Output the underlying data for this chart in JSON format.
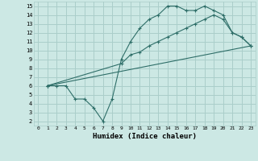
{
  "xlabel": "Humidex (Indice chaleur)",
  "bg_color": "#cce8e4",
  "grid_color": "#aaceca",
  "line_color": "#2e6e68",
  "xlim": [
    -0.5,
    23.5
  ],
  "ylim": [
    1.5,
    15.5
  ],
  "xticks": [
    0,
    1,
    2,
    3,
    4,
    5,
    6,
    7,
    8,
    9,
    10,
    11,
    12,
    13,
    14,
    15,
    16,
    17,
    18,
    19,
    20,
    21,
    22,
    23
  ],
  "yticks": [
    2,
    3,
    4,
    5,
    6,
    7,
    8,
    9,
    10,
    11,
    12,
    13,
    14,
    15
  ],
  "line1_x": [
    1,
    2,
    3,
    4,
    5,
    6,
    7,
    8,
    9,
    10,
    11,
    12,
    13,
    14,
    15,
    16,
    17,
    18,
    19,
    20,
    21,
    22,
    23
  ],
  "line1_y": [
    6,
    6,
    6,
    4.5,
    4.5,
    3.5,
    2,
    4.5,
    9,
    11,
    12.5,
    13.5,
    14,
    15,
    15,
    14.5,
    14.5,
    15,
    14.5,
    14,
    12,
    11.5,
    10.5
  ],
  "line2_x": [
    1,
    9,
    10,
    11,
    12,
    13,
    14,
    15,
    16,
    17,
    18,
    19,
    20,
    21,
    22,
    23
  ],
  "line2_y": [
    6,
    8.5,
    9.5,
    9.8,
    10.5,
    11,
    11.5,
    12,
    12.5,
    13,
    13.5,
    14,
    13.5,
    12,
    11.5,
    10.5
  ],
  "line3_x": [
    1,
    23
  ],
  "line3_y": [
    6,
    10.5
  ]
}
